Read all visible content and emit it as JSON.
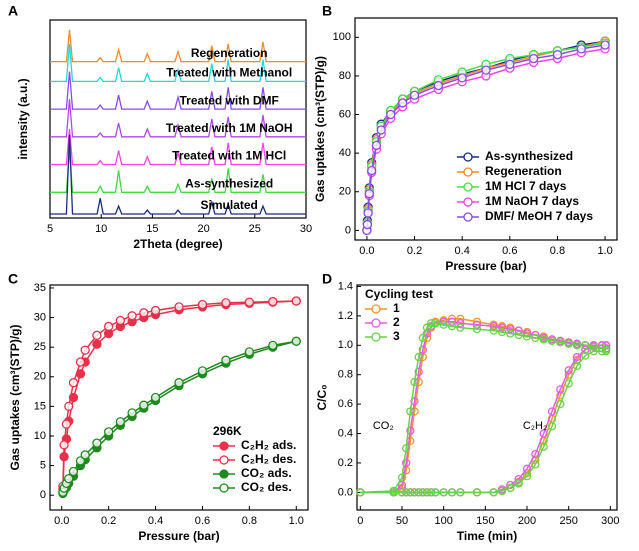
{
  "chart_data": [
    {
      "type": "line",
      "panel": "A",
      "xlabel": "2Theta (degree)",
      "ylabel": "intensity  (a.u.)",
      "xlim": [
        5,
        30
      ],
      "xticks": [
        5,
        10,
        15,
        20,
        25,
        30
      ],
      "ylim": [
        0,
        10
      ],
      "x": [
        5,
        6.6,
        6.9,
        7.2,
        9.6,
        9.9,
        10.2,
        11.4,
        11.7,
        12.0,
        14.2,
        14.5,
        14.8,
        17.2,
        17.5,
        17.8,
        20.5,
        20.8,
        21.1,
        22.1,
        22.4,
        22.7,
        25.5,
        25.8,
        26.1,
        30
      ],
      "series": [
        {
          "name": "Regeneration",
          "color": "#f08a2a",
          "values": [
            7.9,
            7.9,
            9.5,
            7.9,
            7.9,
            8.1,
            7.9,
            7.9,
            8.5,
            7.9,
            7.9,
            8.3,
            7.9,
            7.9,
            8.4,
            7.9,
            7.9,
            8.7,
            7.9,
            7.9,
            8.8,
            7.9,
            7.9,
            8.9,
            7.9,
            7.9
          ]
        },
        {
          "name": "Treated with Methanol",
          "color": "#22d8e0",
          "values": [
            6.9,
            6.9,
            8.8,
            6.9,
            6.9,
            7.1,
            6.9,
            6.9,
            7.6,
            6.9,
            6.9,
            7.3,
            6.9,
            6.9,
            7.5,
            6.9,
            6.9,
            7.8,
            6.9,
            6.9,
            8.0,
            6.9,
            6.9,
            8.0,
            6.9,
            6.9
          ]
        },
        {
          "name": "Treated with DMF",
          "color": "#8a4ae8",
          "values": [
            5.5,
            5.5,
            7.4,
            5.5,
            5.5,
            5.7,
            5.5,
            5.5,
            6.2,
            5.5,
            5.5,
            5.9,
            5.5,
            5.5,
            6.1,
            5.5,
            5.5,
            6.4,
            5.5,
            5.5,
            6.6,
            5.5,
            5.5,
            6.6,
            5.5,
            5.5
          ]
        },
        {
          "name": "Treated with 1M NaOH",
          "color": "#b048e0",
          "values": [
            4.1,
            4.1,
            6.0,
            4.1,
            4.1,
            4.3,
            4.1,
            4.1,
            4.8,
            4.1,
            4.1,
            4.5,
            4.1,
            4.1,
            4.7,
            4.1,
            4.1,
            5.0,
            4.1,
            4.1,
            5.1,
            4.1,
            4.1,
            5.2,
            4.1,
            4.1
          ]
        },
        {
          "name": "Treated with 1M HCl",
          "color": "#ee44ee",
          "values": [
            2.7,
            2.7,
            4.5,
            2.7,
            2.7,
            2.9,
            2.7,
            2.7,
            3.4,
            2.7,
            2.7,
            3.1,
            2.7,
            2.7,
            3.3,
            2.7,
            2.7,
            3.6,
            2.7,
            2.7,
            3.8,
            2.7,
            2.7,
            3.8,
            2.7,
            2.7
          ]
        },
        {
          "name": "As-synthesized",
          "color": "#44d844",
          "values": [
            1.3,
            1.3,
            3.5,
            1.3,
            1.3,
            1.6,
            1.3,
            1.3,
            2.4,
            1.3,
            1.3,
            1.6,
            1.3,
            1.3,
            1.7,
            1.3,
            1.3,
            2.0,
            1.3,
            1.3,
            2.5,
            1.3,
            1.3,
            2.2,
            1.3,
            1.3
          ]
        },
        {
          "name": "Simulated",
          "color": "#1a2a80",
          "values": [
            0.2,
            0.2,
            4.2,
            0.2,
            0.2,
            1.0,
            0.2,
            0.2,
            0.6,
            0.2,
            0.2,
            0.4,
            0.2,
            0.2,
            0.4,
            0.2,
            0.2,
            0.8,
            0.2,
            0.2,
            0.7,
            0.2,
            0.2,
            0.6,
            0.2,
            0.2
          ]
        }
      ]
    },
    {
      "type": "scatter",
      "panel": "B",
      "xlabel": "Pressure (bar)",
      "ylabel": "Gas uptakes (cm³(STP)/g)",
      "xlim": [
        -0.05,
        1.05
      ],
      "xticks": [
        {
          "value": 0,
          "label": "0.0"
        },
        0.2,
        0.4,
        0.6,
        0.8,
        {
          "value": 1,
          "label": "1.0"
        }
      ],
      "ylim": [
        -5,
        110
      ],
      "yticks": [
        0,
        20,
        40,
        60,
        80,
        100
      ],
      "legend": "lower right",
      "legend_colored_text": true,
      "filled": false,
      "x": [
        0,
        0.002,
        0.005,
        0.01,
        0.02,
        0.04,
        0.06,
        0.1,
        0.15,
        0.2,
        0.3,
        0.4,
        0.5,
        0.6,
        0.7,
        0.8,
        0.9,
        1.0
      ],
      "series": [
        {
          "name": "As-synthesized",
          "color": "#1a2a80",
          "values": [
            0,
            5,
            12,
            22,
            35,
            48,
            55,
            62,
            68,
            72,
            77,
            81,
            84,
            88,
            91,
            93,
            96,
            98
          ]
        },
        {
          "name": "Regeneration",
          "color": "#f08a2a",
          "values": [
            0,
            4,
            11,
            21,
            34,
            47,
            54,
            61,
            67,
            71,
            76,
            80,
            84,
            87,
            90,
            93,
            95,
            98
          ]
        },
        {
          "name": "1M HCl 7 days",
          "color": "#44e044",
          "values": [
            0,
            4,
            10,
            20,
            33,
            46,
            54,
            62,
            68,
            72,
            78,
            82,
            86,
            89,
            91,
            93,
            95,
            97
          ]
        },
        {
          "name": "1M NaOH 7 days",
          "color": "#ee44ee",
          "values": [
            0,
            3,
            9,
            18,
            30,
            42,
            50,
            58,
            64,
            68,
            73,
            77,
            80,
            84,
            87,
            89,
            92,
            94
          ]
        },
        {
          "name": "DMF/ MeOH 7 days",
          "color": "#8a4ae8",
          "values": [
            0,
            3,
            9,
            19,
            31,
            44,
            52,
            60,
            66,
            70,
            75,
            79,
            83,
            86,
            89,
            91,
            94,
            96
          ]
        }
      ]
    },
    {
      "type": "scatter",
      "panel": "C",
      "xlabel": "Pressure (bar)",
      "ylabel": "Gas uptakes (cm³(STP)/g)",
      "xlim": [
        -0.05,
        1.05
      ],
      "xticks": [
        {
          "value": 0,
          "label": "0.0"
        },
        0.2,
        0.4,
        0.6,
        0.8,
        {
          "value": 1,
          "label": "1.0"
        }
      ],
      "ylim": [
        -2.5,
        35.5
      ],
      "yticks": [
        0,
        5,
        10,
        15,
        20,
        25,
        30,
        35
      ],
      "legend": "lower right",
      "legend_title": "296K",
      "x": [
        0.005,
        0.01,
        0.02,
        0.03,
        0.05,
        0.08,
        0.1,
        0.15,
        0.2,
        0.25,
        0.3,
        0.35,
        0.4,
        0.5,
        0.6,
        0.7,
        0.8,
        0.9,
        1.0
      ],
      "series": [
        {
          "name": "C₂H₂ ads.",
          "color": "#e8304a",
          "filled": true,
          "values": [
            1,
            6.5,
            9.5,
            12.5,
            16.5,
            20.5,
            22.5,
            25.5,
            27.3,
            28.5,
            29.3,
            30,
            30.5,
            31.3,
            31.8,
            32.2,
            32.4,
            32.6,
            32.8
          ]
        },
        {
          "name": "C₂H₂ des.",
          "color": "#e8304a",
          "filled": false,
          "values": [
            1.5,
            8.5,
            12,
            15,
            19,
            22.5,
            24.5,
            27,
            28.5,
            29.5,
            30.3,
            30.8,
            31.2,
            31.8,
            32.2,
            32.5,
            32.6,
            32.7,
            32.8
          ]
        },
        {
          "name": "CO₂ ads.",
          "color": "#1e8a1e",
          "filled": true,
          "values": [
            0.3,
            0.8,
            1.3,
            2,
            3.2,
            5,
            6,
            8,
            10,
            11.8,
            13.3,
            14.7,
            16,
            18.5,
            20.5,
            22.3,
            23.8,
            25,
            26
          ]
        },
        {
          "name": "CO₂ des.",
          "color": "#1e8a1e",
          "filled": false,
          "values": [
            0.5,
            1.2,
            2,
            2.8,
            4,
            5.8,
            6.8,
            8.8,
            10.7,
            12.4,
            13.9,
            15.2,
            16.5,
            19,
            21,
            22.8,
            24.2,
            25.3,
            26
          ]
        }
      ]
    },
    {
      "type": "scatter",
      "panel": "D",
      "xlabel": "Time (min)",
      "ylabel": "C/C₀",
      "xlim": [
        -4,
        308
      ],
      "xticks": [
        0,
        50,
        100,
        150,
        200,
        250,
        300
      ],
      "ylim": [
        -0.12,
        1.41
      ],
      "yticks": [
        {
          "value": 0,
          "label": "0.0"
        },
        0.2,
        0.4,
        0.6,
        0.8,
        {
          "value": 1,
          "label": "1.0"
        },
        1.2,
        1.4
      ],
      "legend": "upper left",
      "legend_title": "Cycling test",
      "filled": false,
      "annotations": [
        "CO₂",
        "C₂H₂"
      ],
      "annotation_color": "#f0a020",
      "x": [
        0,
        40,
        50,
        55,
        60,
        65,
        70,
        75,
        80,
        85,
        90,
        100,
        110,
        120,
        140,
        160,
        170,
        180,
        190,
        200,
        210,
        220,
        230,
        240,
        250,
        260,
        270,
        280,
        290,
        295
      ],
      "series": [
        {
          "name": "1",
          "color": "#f5962a",
          "co2_values": [
            0,
            0,
            0.03,
            0.15,
            0.35,
            0.55,
            0.75,
            0.92,
            1.05,
            1.12,
            1.16,
            1.17,
            1.18,
            1.18,
            1.16,
            1.14,
            1.13,
            1.12,
            1.1,
            1.09,
            1.07,
            1.06,
            1.04,
            1.03,
            1.02,
            1.01,
            1.0,
            1.0,
            1.0,
            1.0
          ],
          "c2h2_values": [
            0,
            0,
            0,
            0,
            0,
            0,
            0,
            0,
            0,
            0,
            0,
            0,
            0,
            0,
            0,
            0,
            0.01,
            0.03,
            0.07,
            0.13,
            0.22,
            0.35,
            0.5,
            0.66,
            0.8,
            0.9,
            0.97,
            1.0,
            1.0,
            1.0
          ]
        },
        {
          "name": "2",
          "color": "#e85ae8",
          "co2_values": [
            0,
            0,
            0.05,
            0.2,
            0.42,
            0.62,
            0.82,
            0.97,
            1.08,
            1.13,
            1.15,
            1.16,
            1.16,
            1.15,
            1.14,
            1.13,
            1.12,
            1.11,
            1.1,
            1.08,
            1.07,
            1.05,
            1.04,
            1.03,
            1.02,
            1.01,
            1.0,
            1.0,
            0.98,
            0.98
          ],
          "c2h2_values": [
            0,
            0,
            0,
            0,
            0,
            0,
            0,
            0,
            0,
            0,
            0,
            0,
            0,
            0,
            0,
            0,
            0.02,
            0.05,
            0.09,
            0.16,
            0.26,
            0.4,
            0.55,
            0.7,
            0.83,
            0.92,
            0.97,
            0.99,
            1.0,
            1.0
          ]
        },
        {
          "name": "3",
          "color": "#6ad04a",
          "co2_values": [
            0,
            0.01,
            0.1,
            0.3,
            0.55,
            0.75,
            0.92,
            1.05,
            1.12,
            1.15,
            1.15,
            1.14,
            1.13,
            1.12,
            1.11,
            1.1,
            1.09,
            1.08,
            1.07,
            1.06,
            1.05,
            1.04,
            1.03,
            1.02,
            1.01,
            1.0,
            1.0,
            0.99,
            0.98,
            0.97
          ],
          "c2h2_values": [
            0,
            0,
            0,
            0,
            0,
            0,
            0,
            0,
            0,
            0,
            0,
            0,
            0,
            0,
            0,
            0,
            0.01,
            0.03,
            0.06,
            0.11,
            0.19,
            0.31,
            0.45,
            0.6,
            0.74,
            0.86,
            0.93,
            0.96,
            0.96,
            0.96
          ]
        }
      ]
    }
  ]
}
